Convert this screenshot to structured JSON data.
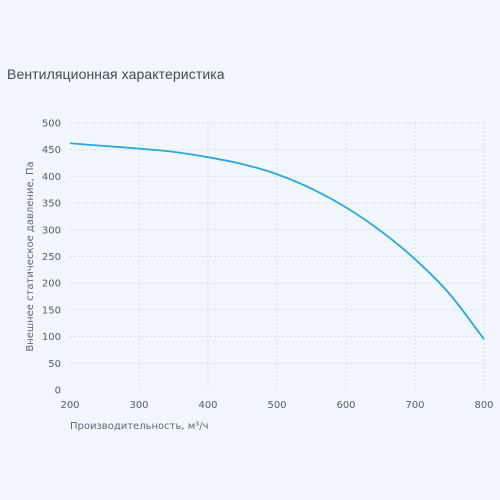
{
  "chart_title": "Вентиляционная характеристика",
  "colors": {
    "curve": "#2aa9dc",
    "background": "#f1f7fc"
  },
  "chart_data": {
    "type": "line",
    "title": "Вентиляционная характеристика",
    "xlabel": "Производительность, м³/ч",
    "ylabel": "Внешнее статическое давление, Па",
    "xlim": [
      200,
      800
    ],
    "ylim": [
      0,
      500
    ],
    "x_ticks": [
      200,
      300,
      400,
      500,
      600,
      700,
      800
    ],
    "y_ticks": [
      0,
      50,
      100,
      150,
      200,
      250,
      300,
      350,
      400,
      450,
      500
    ],
    "grid": true,
    "series": [
      {
        "x": [
          200,
          250,
          300,
          350,
          400,
          450,
          500,
          550,
          600,
          650,
          700,
          750,
          800
        ],
        "values": [
          462,
          457,
          452,
          446,
          436,
          423,
          404,
          377,
          342,
          298,
          245,
          180,
          95
        ]
      }
    ]
  }
}
